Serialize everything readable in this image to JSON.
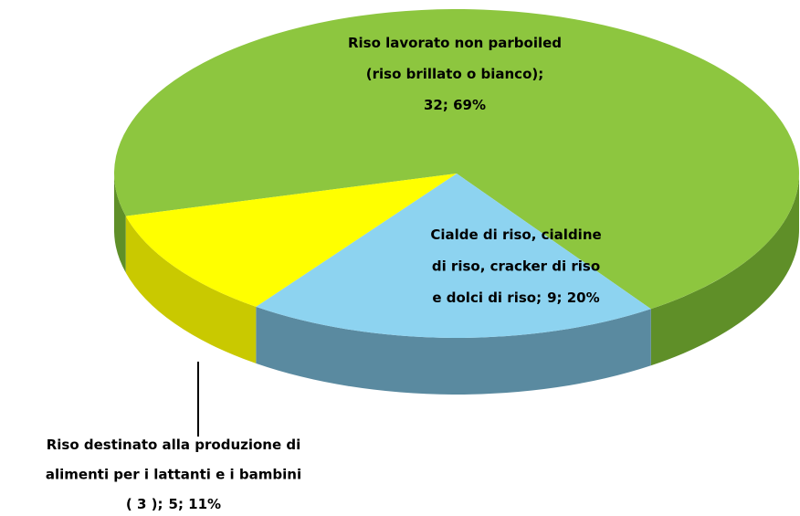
{
  "chart_data": {
    "type": "pie",
    "categories": [
      [
        "Riso lavorato non parboiled",
        "(riso brillato o bianco);"
      ],
      [
        "Cialde di riso, cialdine",
        "di riso, cracker di riso",
        "e dolci di riso;"
      ],
      [
        "Riso destinato alla produzione di",
        "alimenti per i lattanti e i bambini",
        "( 3 );"
      ]
    ],
    "values": [
      32,
      9,
      5
    ],
    "value_labels": [
      "32; 69%",
      "9; 20%",
      "5; 11%"
    ],
    "colors": [
      "#8dc63f",
      "#8dd3f0",
      "#ffff00"
    ],
    "side_colors": [
      "#5f8f28",
      "#5a8aa0",
      "#c9c900"
    ]
  }
}
